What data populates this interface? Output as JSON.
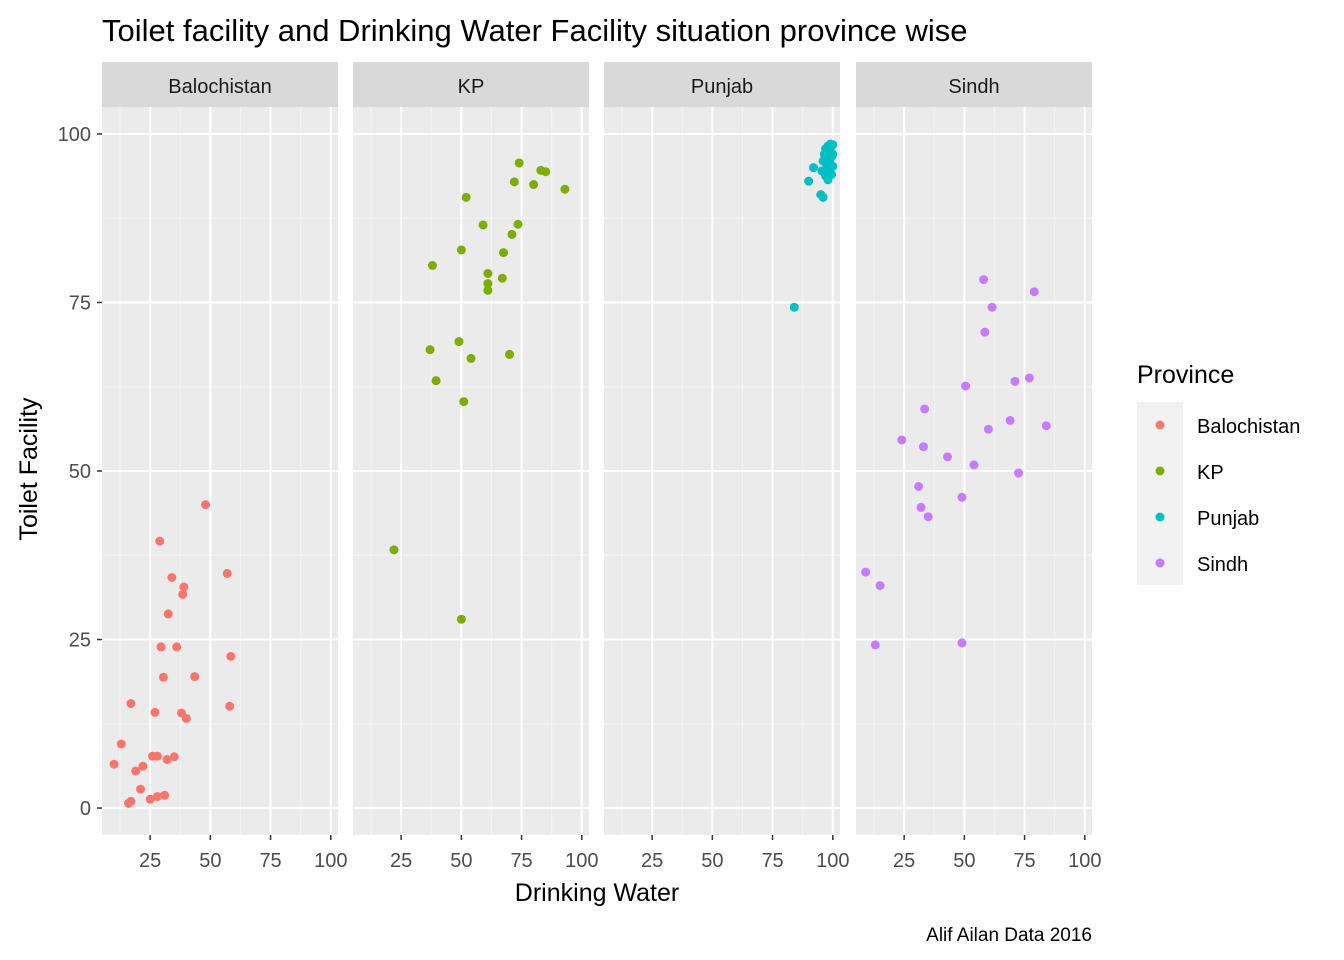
{
  "chart_data": {
    "type": "scatter",
    "title": "Toilet facility and Drinking Water Facility situation province wise",
    "xlabel": "Drinking Water",
    "ylabel": "Toilet Facility",
    "caption": "Alif Ailan Data 2016",
    "legend_title": "Province",
    "legend_position": "right",
    "grid": true,
    "xlim": [
      5,
      103
    ],
    "ylim": [
      -4,
      104
    ],
    "x_ticks": [
      25,
      50,
      75,
      100
    ],
    "y_ticks": [
      0,
      25,
      50,
      75,
      100
    ],
    "x_tick_labels": [
      "25",
      "50",
      "75",
      "100"
    ],
    "y_tick_labels": [
      "0",
      "25",
      "50",
      "75",
      "100"
    ],
    "colors": {
      "Balochistan": "#F8766D",
      "KP": "#7CAE00",
      "Punjab": "#00BFC4",
      "Sindh": "#C77CFF"
    },
    "panels": [
      {
        "name": "Balochistan",
        "points": [
          [
            10,
            6.5
          ],
          [
            13,
            9.5
          ],
          [
            16,
            0.7
          ],
          [
            17,
            1
          ],
          [
            17,
            15.5
          ],
          [
            19,
            5.5
          ],
          [
            21,
            2.8
          ],
          [
            22,
            6.2
          ],
          [
            25,
            1.3
          ],
          [
            26,
            7.7
          ],
          [
            27,
            14.2
          ],
          [
            28,
            7.7
          ],
          [
            28,
            1.7
          ],
          [
            29,
            39.6
          ],
          [
            29.5,
            23.9
          ],
          [
            30.5,
            19.4
          ],
          [
            31,
            1.9
          ],
          [
            32,
            7.2
          ],
          [
            32.5,
            28.8
          ],
          [
            34,
            34.2
          ],
          [
            35,
            7.6
          ],
          [
            36,
            23.9
          ],
          [
            38,
            14.1
          ],
          [
            38.5,
            31.7
          ],
          [
            39,
            32.8
          ],
          [
            40,
            13.3
          ],
          [
            43.5,
            19.5
          ],
          [
            48,
            45
          ],
          [
            57,
            34.8
          ],
          [
            58,
            15.1
          ],
          [
            58.5,
            22.5
          ]
        ]
      },
      {
        "name": "KP",
        "points": [
          [
            22,
            38.3
          ],
          [
            37,
            68
          ],
          [
            38,
            80.5
          ],
          [
            39.5,
            63.4
          ],
          [
            49,
            69.2
          ],
          [
            50,
            82.8
          ],
          [
            50,
            28
          ],
          [
            51,
            60.3
          ],
          [
            52,
            90.6
          ],
          [
            54,
            66.7
          ],
          [
            59,
            86.5
          ],
          [
            61,
            79.3
          ],
          [
            61,
            77.8
          ],
          [
            61,
            76.8
          ],
          [
            67,
            78.6
          ],
          [
            67.5,
            82.4
          ],
          [
            70,
            67.3
          ],
          [
            71,
            85.1
          ],
          [
            72,
            92.9
          ],
          [
            73.5,
            86.6
          ],
          [
            74,
            95.7
          ],
          [
            80,
            92.5
          ],
          [
            83,
            94.6
          ],
          [
            85,
            94.4
          ],
          [
            93,
            91.8
          ]
        ]
      },
      {
        "name": "Punjab",
        "points": [
          [
            84,
            74.3
          ],
          [
            90,
            93
          ],
          [
            92,
            95
          ],
          [
            95,
            91
          ],
          [
            96,
            90.6
          ],
          [
            95.5,
            94.5
          ],
          [
            96,
            96
          ],
          [
            96.5,
            97
          ],
          [
            97,
            93.8
          ],
          [
            97,
            97.8
          ],
          [
            97.5,
            95.2
          ],
          [
            98,
            93.2
          ],
          [
            98,
            96.2
          ],
          [
            98,
            98.2
          ],
          [
            98.5,
            94.5
          ],
          [
            99,
            95.6
          ],
          [
            99,
            97.5
          ],
          [
            99,
            98.5
          ],
          [
            99.5,
            94
          ],
          [
            99.5,
            96.6
          ],
          [
            100,
            95.2
          ],
          [
            100,
            97
          ],
          [
            100,
            98.4
          ]
        ]
      },
      {
        "name": "Sindh",
        "points": [
          [
            9,
            35
          ],
          [
            13,
            24.2
          ],
          [
            15,
            33
          ],
          [
            24,
            54.6
          ],
          [
            31,
            47.7
          ],
          [
            32,
            44.6
          ],
          [
            33,
            53.6
          ],
          [
            33.5,
            59.2
          ],
          [
            35,
            43.2
          ],
          [
            43,
            52.1
          ],
          [
            49,
            46.1
          ],
          [
            49,
            24.5
          ],
          [
            50.5,
            62.6
          ],
          [
            54,
            50.9
          ],
          [
            58,
            78.4
          ],
          [
            58.5,
            70.6
          ],
          [
            60,
            56.2
          ],
          [
            61.5,
            74.3
          ],
          [
            69,
            57.5
          ],
          [
            71,
            63.3
          ],
          [
            72.5,
            49.7
          ],
          [
            77,
            63.8
          ],
          [
            79,
            76.6
          ],
          [
            84,
            56.7
          ]
        ]
      }
    ]
  }
}
